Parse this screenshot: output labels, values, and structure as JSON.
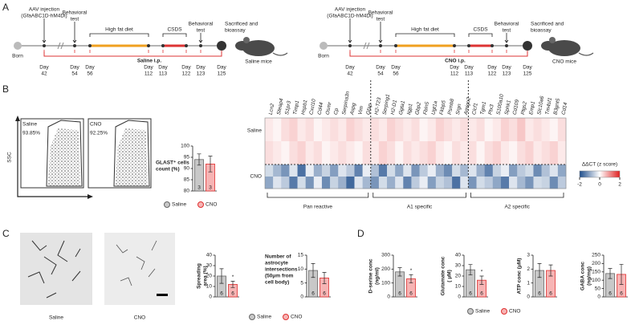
{
  "panel_labels": [
    "A",
    "B",
    "C",
    "D"
  ],
  "timelines": [
    {
      "born": "Born",
      "injection": [
        "AAV injection",
        "(GfaABC1D-hM4Di)"
      ],
      "test1": [
        "Behavioral",
        "test"
      ],
      "hfd": "High fat diet",
      "csds": "CSDS",
      "test2": [
        "Behavioral",
        "test"
      ],
      "sacrifice": [
        "Sacrificed and",
        "bioassay"
      ],
      "treatment": "Saline i.p.",
      "mouse": "Saline mice",
      "day_word": "Day",
      "days": [
        "42",
        "54",
        "56",
        "112",
        "113",
        "122",
        "123",
        "125"
      ]
    },
    {
      "born": "Born",
      "injection": [
        "AAV injection",
        "(GfaABC1D-hM4Di)"
      ],
      "test1": [
        "Behavioral",
        "test"
      ],
      "hfd": "High fat diet",
      "csds": "CSDS",
      "test2": [
        "Behavioral",
        "test"
      ],
      "sacrifice": [
        "Sacrificed and",
        "bioassay"
      ],
      "treatment": "CNO i.p.",
      "mouse": "CNO mice",
      "day_word": "Day",
      "days": [
        "42",
        "54",
        "56",
        "112",
        "113",
        "122",
        "123",
        "125"
      ]
    }
  ],
  "flow": {
    "axis_label": "SSC",
    "plots": [
      {
        "name": "Saline",
        "percent": "93.85%"
      },
      {
        "name": "CNO",
        "percent": "92.25%"
      }
    ]
  },
  "heatmap": {
    "gene_sets": [
      {
        "name": "Pan reactive",
        "genes": [
          "Lcn2",
          "Steap4",
          "S1pr3",
          "Timp1",
          "Hspb1",
          "Cxcl10",
          "Cd44",
          "Osmr",
          "Cp",
          "Serpina3n",
          "Aspg",
          "Vim",
          "Gfap"
        ]
      },
      {
        "name": "A1 specific",
        "genes": [
          "H2-T23",
          "Serping1",
          "H2-D1",
          "Ggta1",
          "Iigp1",
          "Gbp2",
          "Fbln5",
          "Ugt1a",
          "Fkbp5",
          "Psmb8",
          "Srgn",
          "Amigo2"
        ]
      },
      {
        "name": "A2 specific",
        "genes": [
          "Clcf1",
          "Tgm1",
          "Ptx3",
          "S100a10",
          "Sphk1",
          "Cd109",
          "Ptgs2",
          "Emp1",
          "Slc10a6",
          "Tm4sf1",
          "B3gnt5",
          "Cd14"
        ]
      }
    ],
    "groups": [
      {
        "name": "Saline",
        "rows": [
          [
            0.2,
            0.1,
            0.3,
            0.4,
            0.2,
            0.3,
            0.1,
            0.2,
            0.3,
            0.2,
            0.4,
            0.3,
            0.2,
            0.3,
            0.2,
            0.4,
            0.3,
            0.2,
            0.3,
            0.1,
            0.2,
            0.4,
            0.3,
            0.2,
            0.3,
            0.2,
            0.3,
            0.1,
            0.2,
            0.4,
            0.3,
            0.5,
            0.2,
            0.3,
            0.2,
            0.1,
            0.3
          ],
          [
            0.3,
            0.2,
            0.1,
            0.3,
            0.4,
            0.2,
            0.3,
            0.1,
            0.2,
            0.3,
            0.2,
            0.1,
            0.3,
            0.2,
            0.4,
            0.3,
            0.1,
            0.3,
            0.2,
            0.3,
            0.4,
            0.2,
            0.1,
            0.3,
            0.2,
            0.3,
            0.1,
            0.3,
            0.4,
            0.2,
            0.1,
            0.3,
            0.4,
            0.2,
            0.3,
            0.4,
            0.2
          ]
        ]
      },
      {
        "name": "CNO",
        "rows": [
          [
            -0.4,
            -0.8,
            -1.2,
            -0.3,
            -1.6,
            -0.2,
            -0.9,
            -0.5,
            -1.1,
            -0.3,
            -0.6,
            -1.4,
            -0.2,
            -0.7,
            -1.5,
            -0.4,
            -1.0,
            -0.3,
            -1.2,
            -0.6,
            -0.2,
            -0.9,
            -1.3,
            -0.4,
            -0.8,
            -0.3,
            -0.9,
            -1.4,
            -0.5,
            -0.2,
            -1.1,
            -0.6,
            -0.4,
            -1.3,
            -0.7,
            -0.3,
            -1.0
          ],
          [
            -1.0,
            -0.3,
            -0.6,
            -1.5,
            -0.4,
            -1.2,
            -0.2,
            -1.3,
            -0.5,
            -0.9,
            -1.7,
            -0.3,
            -0.8,
            -1.2,
            -0.4,
            -0.9,
            -0.3,
            -1.4,
            -0.6,
            -0.2,
            -1.1,
            -0.5,
            -0.7,
            -1.6,
            -0.3,
            -1.2,
            -0.4,
            -0.6,
            -1.0,
            -1.5,
            -0.3,
            -0.8,
            -1.2,
            -0.4,
            -0.5,
            -1.3,
            -0.6
          ]
        ]
      }
    ],
    "colorbar": {
      "title": "ΔΔCT (z score)",
      "lim": [
        -2,
        2
      ],
      "ticks": [
        -2,
        0,
        2
      ],
      "colors": [
        "#1f4e8c",
        "#ffffff",
        "#e02020"
      ]
    }
  },
  "images": {
    "labels": [
      "Saline",
      "CNO"
    ]
  },
  "legend": [
    {
      "name": "Saline",
      "color": "#c8c8c8",
      "stroke": "#666666"
    },
    {
      "name": "CNO",
      "color": "#f6b4b4",
      "stroke": "#e03030"
    }
  ],
  "chart_data": [
    {
      "type": "bar",
      "ylabel": [
        "GLAST⁺ cells",
        "count (%)"
      ],
      "values": [
        94,
        92
      ],
      "errors": [
        2.5,
        3.5
      ],
      "n_labels": [
        "3",
        "3"
      ],
      "significance": [
        null,
        null
      ],
      "ylim": [
        80,
        100
      ],
      "yticks": [
        80,
        85,
        90,
        95,
        100
      ]
    },
    {
      "type": "bar",
      "ylabel": [
        "Spreading",
        "area (%)"
      ],
      "values": [
        20,
        12
      ],
      "errors": [
        7,
        3
      ],
      "n_labels": [
        "6",
        "6"
      ],
      "significance": [
        null,
        "*"
      ],
      "ylim": [
        0,
        40
      ],
      "yticks": [
        0,
        10,
        20,
        30,
        40
      ]
    },
    {
      "type": "bar",
      "ylabel": [
        "Number of",
        "astrocyte",
        "intersections",
        "(50μm from",
        "cell body)"
      ],
      "values": [
        9.5,
        6.8
      ],
      "errors": [
        2.5,
        2
      ],
      "n_labels": [
        "6",
        "6"
      ],
      "significance": [
        null,
        null
      ],
      "ylim": [
        0,
        15
      ],
      "yticks": [
        0,
        5,
        10,
        15
      ]
    },
    {
      "type": "bar",
      "ylabel": [
        "D-serine conc",
        "(ng/ml)"
      ],
      "values": [
        180,
        130
      ],
      "errors": [
        30,
        30
      ],
      "n_labels": [
        "6",
        "6"
      ],
      "significance": [
        null,
        "*"
      ],
      "ylim": [
        0,
        300
      ],
      "yticks": [
        0,
        100,
        200,
        300
      ]
    },
    {
      "type": "bar",
      "ylabel": [
        "Glutamate conc",
        "( μM)"
      ],
      "values": [
        26,
        16
      ],
      "errors": [
        5,
        4
      ],
      "n_labels": [
        "6",
        "6"
      ],
      "significance": [
        null,
        "*"
      ],
      "ylim": [
        0,
        40
      ],
      "yticks": [
        0,
        10,
        20,
        30,
        40
      ]
    },
    {
      "type": "bar",
      "ylabel": [
        "ATP conc (μM)"
      ],
      "values": [
        1.9,
        1.9
      ],
      "errors": [
        0.5,
        0.4
      ],
      "n_labels": [
        "6",
        "6"
      ],
      "significance": [
        null,
        null
      ],
      "ylim": [
        0,
        3
      ],
      "yticks": [
        0,
        1,
        2,
        3
      ]
    },
    {
      "type": "bar",
      "ylabel": [
        "GABA conc",
        "(ng/mg)"
      ],
      "values": [
        140,
        135
      ],
      "errors": [
        30,
        60
      ],
      "n_labels": [
        "6",
        "6"
      ],
      "significance": [
        null,
        null
      ],
      "ylim": [
        0,
        250
      ],
      "yticks": [
        0,
        50,
        100,
        150,
        200,
        250
      ]
    }
  ]
}
